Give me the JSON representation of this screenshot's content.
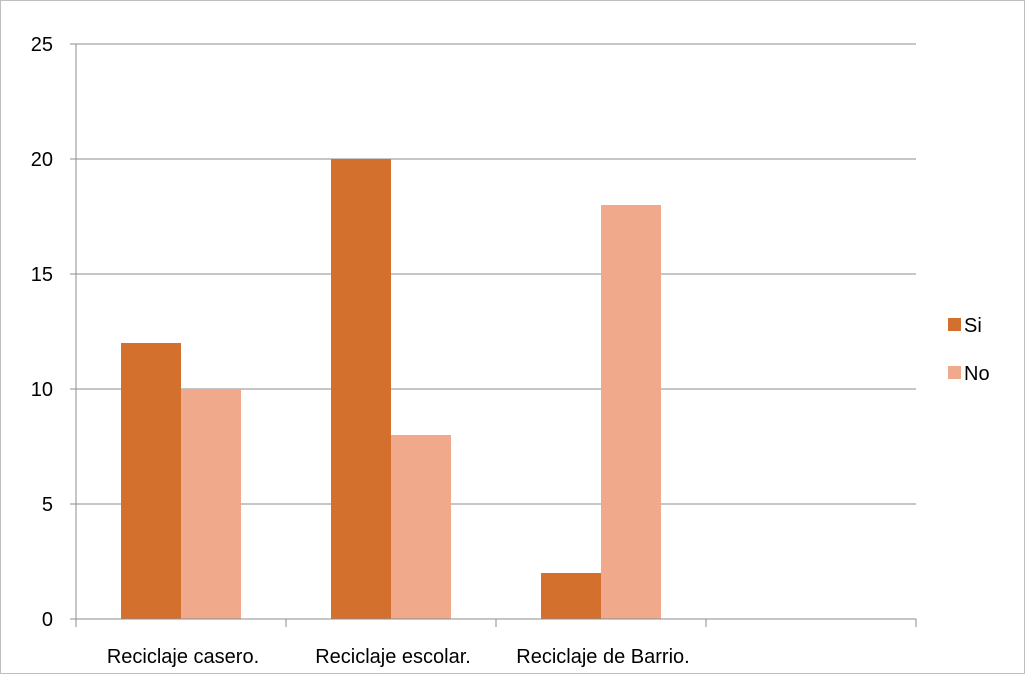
{
  "chart_data": {
    "type": "bar",
    "title": "",
    "xlabel": "",
    "ylabel": "",
    "categories": [
      "Reciclaje casero.",
      "Reciclaje escolar.",
      "Reciclaje de Barrio.",
      ""
    ],
    "series": [
      {
        "name": "Si",
        "values": [
          12,
          20,
          2,
          null
        ],
        "color": "#d4702d"
      },
      {
        "name": "No",
        "values": [
          10,
          8,
          18,
          null
        ],
        "color": "#f0a98b"
      }
    ],
    "ylim": [
      0,
      25
    ],
    "yticks": [
      0,
      5,
      10,
      15,
      20,
      25
    ],
    "grid": true,
    "legend_position": "right"
  }
}
